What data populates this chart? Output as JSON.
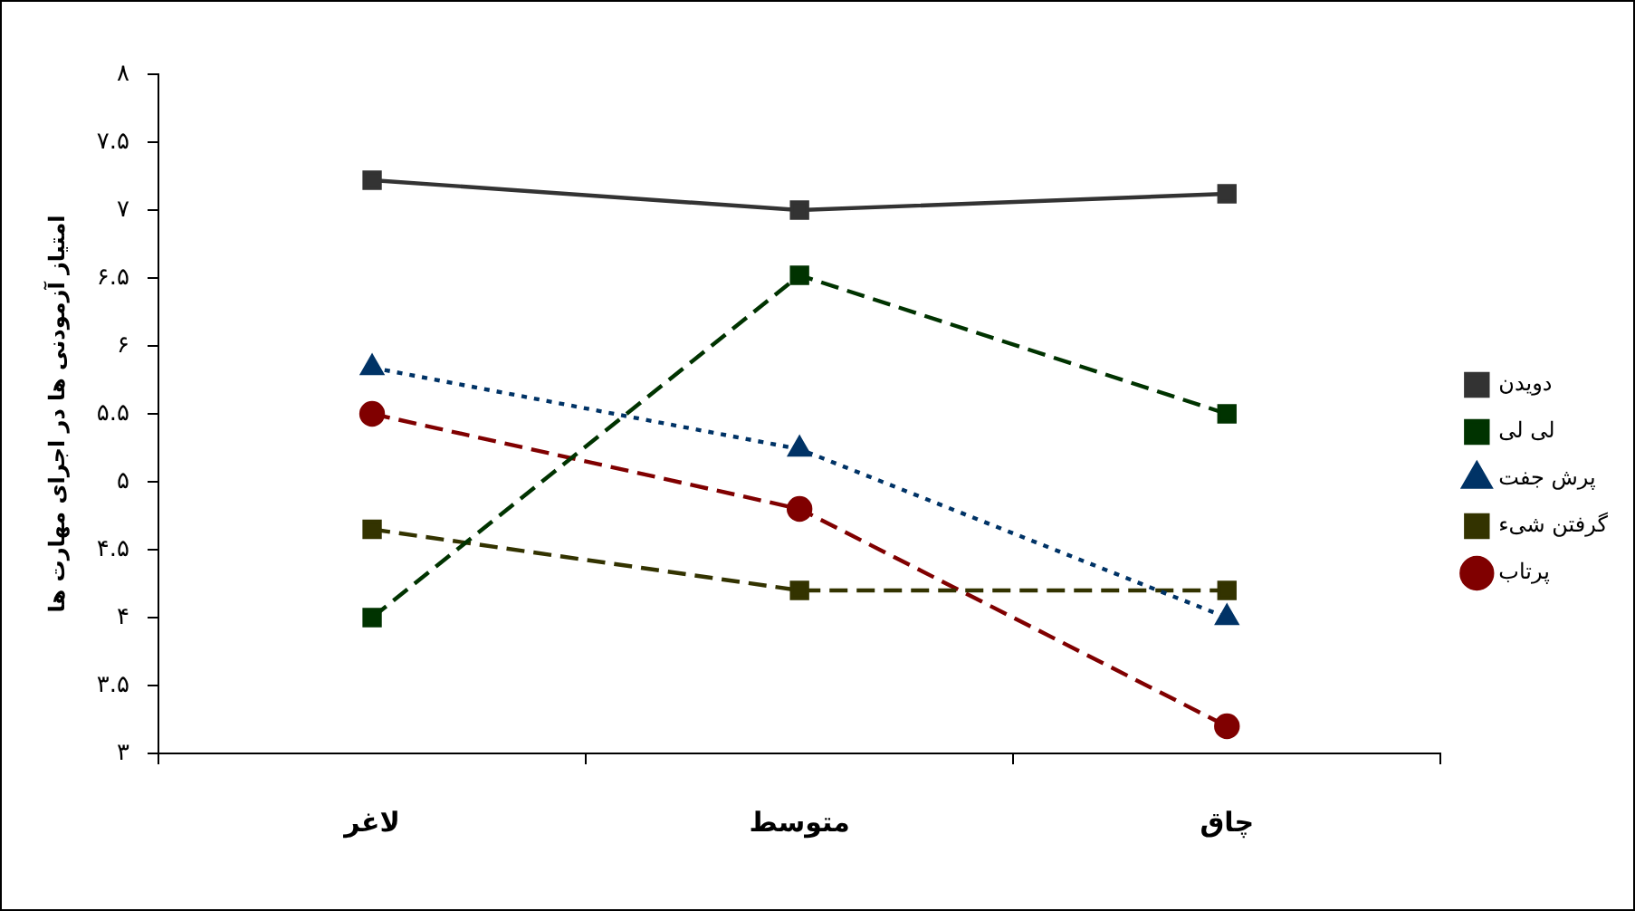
{
  "chart_data": {
    "type": "line",
    "ylabel": "امتیاز آزمودنی ها در اجرای مهارت ها",
    "categories": [
      "لاغر",
      "متوسط",
      "چاق"
    ],
    "series": [
      {
        "name": "دویدن",
        "color": "#333333",
        "values": [
          7.22,
          7.0,
          7.12
        ],
        "marker": "square",
        "line_style": "solid"
      },
      {
        "name": "لی لی",
        "color": "#003300",
        "values": [
          4.0,
          6.52,
          5.5
        ],
        "marker": "square",
        "line_style": "dashed"
      },
      {
        "name": "پرش جفت",
        "color": "#003366",
        "values": [
          5.84,
          5.24,
          4.0
        ],
        "marker": "triangle",
        "line_style": "dotted"
      },
      {
        "name": "گرفتن شیء",
        "color": "#333300",
        "values": [
          4.65,
          4.2,
          4.2
        ],
        "marker": "square",
        "line_style": "dashed"
      },
      {
        "name": "پرتاب",
        "color": "#800000",
        "values": [
          5.5,
          4.8,
          3.2
        ],
        "marker": "circle",
        "line_style": "dashed"
      }
    ],
    "ylim": [
      3,
      8
    ],
    "yticks": [
      {
        "value": 3,
        "label": "۳"
      },
      {
        "value": 3.5,
        "label": "۳.۵"
      },
      {
        "value": 4,
        "label": "۴"
      },
      {
        "value": 4.5,
        "label": "۴.۵"
      },
      {
        "value": 5,
        "label": "۵"
      },
      {
        "value": 5.5,
        "label": "۵.۵"
      },
      {
        "value": 6,
        "label": "۶"
      },
      {
        "value": 6.5,
        "label": "۶.۵"
      },
      {
        "value": 7,
        "label": "۷"
      },
      {
        "value": 7.5,
        "label": "۷.۵"
      },
      {
        "value": 8,
        "label": "۸"
      }
    ],
    "legend": "right",
    "grid": false
  }
}
